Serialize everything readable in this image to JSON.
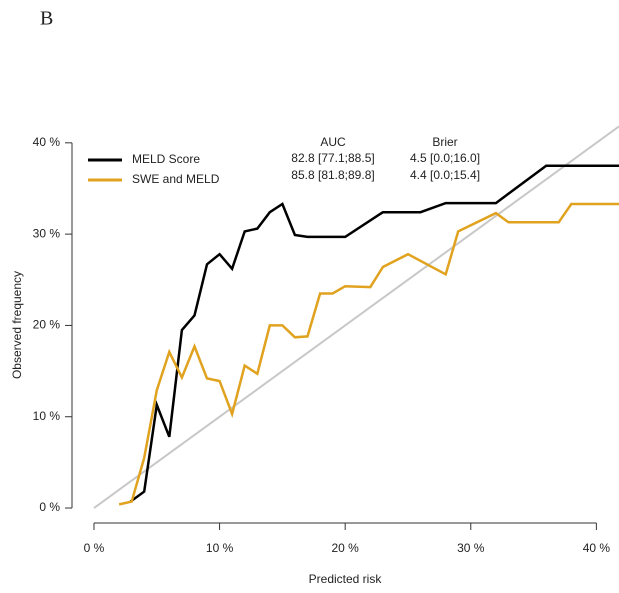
{
  "panel_label": "B",
  "chart_data": {
    "type": "line",
    "xlabel": "Predicted risk",
    "ylabel": "Observed frequency",
    "xlim": [
      -1.75,
      41.8
    ],
    "ylim": [
      -1.64,
      42.5
    ],
    "xticks": [
      {
        "value": 0,
        "label": "0 %"
      },
      {
        "value": 10,
        "label": "10 %"
      },
      {
        "value": 20,
        "label": "20 %"
      },
      {
        "value": 30,
        "label": "30 %"
      },
      {
        "value": 40,
        "label": "40 %"
      }
    ],
    "yticks": [
      {
        "value": 0,
        "label": "0 %"
      },
      {
        "value": 10,
        "label": "10 %"
      },
      {
        "value": 20,
        "label": "20 %"
      },
      {
        "value": 30,
        "label": "30 %"
      },
      {
        "value": 40,
        "label": "40 %"
      }
    ],
    "reference_color": "#c8c8c8",
    "series": [
      {
        "name": "MELD Score",
        "color": "#000000",
        "x": [
          2.9,
          4,
          5,
          6,
          7,
          8,
          9,
          10,
          11,
          12,
          13,
          14,
          15,
          16,
          17,
          20,
          23,
          26,
          28,
          32,
          36,
          41.8
        ],
        "values": [
          0.7,
          1.8,
          11.3,
          7.8,
          19.5,
          21.1,
          26.7,
          27.8,
          26.2,
          30.3,
          30.6,
          32.4,
          33.3,
          29.9,
          29.7,
          29.7,
          32.4,
          32.4,
          33.4,
          33.4,
          37.5,
          37.5
        ]
      },
      {
        "name": "SWE and MELD",
        "color": "#e0a21f",
        "x": [
          2,
          3,
          4,
          5,
          6,
          7,
          8,
          9,
          10,
          11,
          12,
          13,
          14,
          15,
          16,
          17,
          18,
          19,
          20,
          22,
          23,
          25,
          28,
          29,
          32,
          33,
          37,
          38,
          41.8
        ],
        "values": [
          0.4,
          0.7,
          5.5,
          12.9,
          17.1,
          14.3,
          17.7,
          14.2,
          13.9,
          10.3,
          15.6,
          14.7,
          20,
          20,
          18.7,
          18.8,
          23.5,
          23.5,
          24.3,
          24.2,
          26.4,
          27.8,
          25.6,
          30.3,
          32.3,
          31.3,
          31.3,
          33.3,
          33.3
        ]
      }
    ],
    "table": {
      "headers": [
        "AUC",
        "Brier"
      ],
      "rows": [
        [
          "82.8 [77.1;88.5]",
          "4.5 [0.0;16.0]"
        ],
        [
          "85.8 [81.8;89.8]",
          "4.4 [0.0;15.4]"
        ]
      ]
    }
  }
}
